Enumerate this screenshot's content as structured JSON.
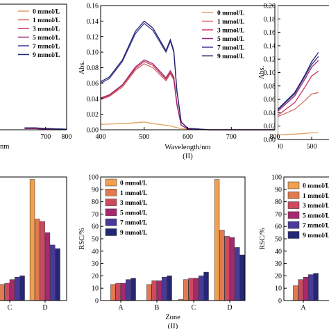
{
  "chart_data": [
    {
      "panel": "top-left (cropped)",
      "type": "line",
      "x_tick_labels": [
        "700",
        "800"
      ],
      "xlabel_fragment": "nm",
      "legend": [
        "0 mmol/L",
        "1 mmol/L",
        "3 mmol/L",
        "5 mmol/L",
        "7 mmol/L",
        "9 mmol/L"
      ],
      "legend_position": "top-right",
      "xlim": [
        450,
        800
      ],
      "ylim": [
        0,
        0.2
      ],
      "series": [
        {
          "name": "0 mmol/L",
          "color": "#e0a060",
          "x": [
            600,
            650,
            700,
            800
          ],
          "y": [
            0.003,
            0.003,
            0.002,
            0.001
          ]
        },
        {
          "name": "1 mmol/L",
          "color": "#d07060",
          "x": [
            600,
            650,
            700,
            800
          ],
          "y": [
            0.002,
            0.002,
            0.001,
            0.001
          ]
        },
        {
          "name": "3 mmol/L",
          "color": "#c83468",
          "x": [
            600,
            650,
            700,
            800
          ],
          "y": [
            0.002,
            0.002,
            0.001,
            0.001
          ]
        },
        {
          "name": "5 mmol/L",
          "color": "#a02870",
          "x": [
            600,
            650,
            700,
            800
          ],
          "y": [
            0.002,
            0.002,
            0.001,
            0.001
          ]
        },
        {
          "name": "7 mmol/L",
          "color": "#3a3a96",
          "x": [
            600,
            650,
            700,
            800
          ],
          "y": [
            0.003,
            0.003,
            0.002,
            0.001
          ]
        },
        {
          "name": "9 mmol/L",
          "color": "#22226e",
          "x": [
            600,
            650,
            700,
            800
          ],
          "y": [
            0.003,
            0.003,
            0.002,
            0.001
          ]
        }
      ]
    },
    {
      "panel": "top-middle",
      "type": "line",
      "xlabel": "Wavelength/nm",
      "ylabel": "Abs.",
      "roman": "(II)",
      "xlim": [
        400,
        800
      ],
      "ylim": [
        0,
        0.16
      ],
      "x_ticks": [
        400,
        500,
        600,
        700,
        800
      ],
      "y_ticks": [
        0.0,
        0.02,
        0.04,
        0.06,
        0.08,
        0.1,
        0.12,
        0.14,
        0.16
      ],
      "y_tick_labels": [
        "0.00",
        "0.02",
        "0.04",
        "0.06",
        "0.08",
        "0.10",
        "0.12",
        "0.14",
        "0.16"
      ],
      "legend": [
        "0 mmol/L",
        "1 mmol/L",
        "3 mmol/L",
        "5 mmol/L",
        "7 mmol/L",
        "9 mmol/L"
      ],
      "legend_position": "top-right",
      "series": [
        {
          "name": "0 mmol/L",
          "color": "#e0a060",
          "x": [
            400,
            450,
            480,
            500,
            520,
            560,
            580,
            600,
            650,
            800
          ],
          "y": [
            0.007,
            0.008,
            0.009,
            0.01,
            0.008,
            0.005,
            0.002,
            0.001,
            0.0,
            0.0
          ]
        },
        {
          "name": "1 mmol/L",
          "color": "#d07060",
          "x": [
            400,
            420,
            450,
            480,
            500,
            520,
            550,
            560,
            568,
            575,
            585,
            600,
            650,
            800
          ],
          "y": [
            0.039,
            0.043,
            0.055,
            0.077,
            0.085,
            0.08,
            0.063,
            0.072,
            0.064,
            0.032,
            0.006,
            0.001,
            0.0,
            0.0
          ]
        },
        {
          "name": "3 mmol/L",
          "color": "#c83468",
          "x": [
            400,
            420,
            450,
            480,
            500,
            520,
            550,
            560,
            568,
            575,
            585,
            600,
            650,
            800
          ],
          "y": [
            0.04,
            0.044,
            0.057,
            0.079,
            0.088,
            0.083,
            0.065,
            0.074,
            0.066,
            0.033,
            0.006,
            0.001,
            0.0,
            0.0
          ]
        },
        {
          "name": "5 mmol/L",
          "color": "#a02870",
          "x": [
            400,
            420,
            450,
            480,
            500,
            520,
            550,
            560,
            568,
            575,
            585,
            600,
            650,
            800
          ],
          "y": [
            0.041,
            0.045,
            0.058,
            0.081,
            0.09,
            0.085,
            0.067,
            0.076,
            0.068,
            0.034,
            0.006,
            0.001,
            0.0,
            0.0
          ]
        },
        {
          "name": "7 mmol/L",
          "color": "#3a3a96",
          "x": [
            400,
            420,
            450,
            480,
            500,
            520,
            550,
            560,
            568,
            575,
            585,
            600,
            650,
            800
          ],
          "y": [
            0.06,
            0.066,
            0.088,
            0.124,
            0.137,
            0.128,
            0.1,
            0.114,
            0.1,
            0.05,
            0.01,
            0.002,
            0.0,
            0.0
          ]
        },
        {
          "name": "9 mmol/L",
          "color": "#22226e",
          "x": [
            400,
            420,
            450,
            480,
            500,
            520,
            550,
            560,
            568,
            575,
            585,
            600,
            650,
            800
          ],
          "y": [
            0.062,
            0.068,
            0.09,
            0.127,
            0.14,
            0.131,
            0.102,
            0.116,
            0.102,
            0.051,
            0.01,
            0.002,
            0.0,
            0.0
          ]
        }
      ]
    },
    {
      "panel": "top-right (cropped)",
      "type": "line",
      "ylabel": "Abs.",
      "xlim": [
        400,
        800
      ],
      "ylim": [
        0,
        0.2
      ],
      "x_tick_labels": [
        "400",
        "500"
      ],
      "y_ticks": [
        0.0,
        0.02,
        0.04,
        0.06,
        0.08,
        0.1,
        0.12,
        0.14,
        0.16,
        0.18,
        0.2
      ],
      "y_tick_labels": [
        "0.00",
        "0.02",
        "0.04",
        "0.06",
        "0.08",
        "0.10",
        "0.12",
        "0.14",
        "0.16",
        "0.18",
        "0.20"
      ],
      "series": [
        {
          "name": "0 mmol/L",
          "color": "#e0a060",
          "x": [
            400,
            450,
            480,
            500,
            520
          ],
          "y": [
            0.007,
            0.008,
            0.009,
            0.01,
            0.01
          ]
        },
        {
          "name": "1 mmol/L",
          "color": "#d07060",
          "x": [
            400,
            450,
            480,
            500,
            520
          ],
          "y": [
            0.034,
            0.045,
            0.058,
            0.068,
            0.07
          ]
        },
        {
          "name": "3 mmol/L",
          "color": "#c83468",
          "x": [
            400,
            450,
            480,
            500,
            520
          ],
          "y": [
            0.036,
            0.055,
            0.078,
            0.095,
            0.102
          ]
        },
        {
          "name": "5 mmol/L",
          "color": "#a02870",
          "x": [
            400,
            450,
            480,
            500,
            520
          ],
          "y": [
            0.042,
            0.065,
            0.09,
            0.108,
            0.118
          ]
        },
        {
          "name": "7 mmol/L",
          "color": "#3a3a96",
          "x": [
            400,
            450,
            480,
            500,
            520
          ],
          "y": [
            0.044,
            0.068,
            0.094,
            0.112,
            0.124
          ]
        },
        {
          "name": "9 mmol/L",
          "color": "#22226e",
          "x": [
            400,
            450,
            480,
            500,
            520
          ],
          "y": [
            0.045,
            0.07,
            0.096,
            0.116,
            0.13
          ]
        }
      ]
    },
    {
      "panel": "bottom-left (cropped)",
      "type": "bar",
      "categories": [
        "C",
        "D"
      ],
      "ylim": [
        0,
        100
      ],
      "series": [
        {
          "name": "0 mmol/L",
          "color": "#f0a050",
          "values": [
            null,
            98
          ]
        },
        {
          "name": "1 mmol/L",
          "color": "#e07a50",
          "values": [
            13,
            66
          ]
        },
        {
          "name": "3 mmol/L",
          "color": "#cc4a5e",
          "values": [
            14,
            64
          ]
        },
        {
          "name": "5 mmol/L",
          "color": "#a8286e",
          "values": [
            17,
            55
          ]
        },
        {
          "name": "7 mmol/L",
          "color": "#4a3a98",
          "values": [
            19,
            45
          ]
        },
        {
          "name": "9 mmol/L",
          "color": "#262676",
          "values": [
            20,
            42
          ]
        }
      ]
    },
    {
      "panel": "bottom-middle",
      "type": "bar",
      "xlabel": "Zone",
      "ylabel": "RSC/%",
      "roman": "(II)",
      "categories": [
        "A",
        "B",
        "C",
        "D"
      ],
      "ylim": [
        0,
        100
      ],
      "y_ticks": [
        0,
        10,
        20,
        30,
        40,
        50,
        60,
        70,
        80,
        90,
        100
      ],
      "legend": [
        "0 mmol/L",
        "1 mmol/L",
        "3 mmol/L",
        "5 mmol/L",
        "7 mmol/L",
        "9 mmol/L"
      ],
      "legend_position": "top-left",
      "series": [
        {
          "name": "0 mmol/L",
          "color": "#f0a050",
          "values": [
            0,
            0,
            1,
            98
          ]
        },
        {
          "name": "1 mmol/L",
          "color": "#e07a50",
          "values": [
            13,
            13,
            17,
            57
          ]
        },
        {
          "name": "3 mmol/L",
          "color": "#cc4a5e",
          "values": [
            14,
            16,
            18,
            52
          ]
        },
        {
          "name": "5 mmol/L",
          "color": "#a8286e",
          "values": [
            14,
            16,
            18,
            51
          ]
        },
        {
          "name": "7 mmol/L",
          "color": "#4a3a98",
          "values": [
            17,
            19,
            20,
            43
          ]
        },
        {
          "name": "9 mmol/L",
          "color": "#262676",
          "values": [
            18,
            20,
            23,
            37
          ]
        }
      ]
    },
    {
      "panel": "bottom-right (cropped)",
      "type": "bar",
      "ylabel": "RSC/%",
      "categories": [
        "A"
      ],
      "ylim": [
        0,
        100
      ],
      "y_ticks": [
        0,
        10,
        20,
        30,
        40,
        50,
        60,
        70,
        80,
        90,
        100
      ],
      "legend": [
        "0 mmol/L",
        "1 mmol/L",
        "3 mmol/L",
        "5 mmol/L",
        "7 mmol/L",
        "9 mmol/L"
      ],
      "legend_position": "top-left",
      "series": [
        {
          "name": "0 mmol/L",
          "color": "#f0a050",
          "values": [
            0
          ]
        },
        {
          "name": "1 mmol/L",
          "color": "#e07a50",
          "values": [
            12
          ]
        },
        {
          "name": "3 mmol/L",
          "color": "#cc4a5e",
          "values": [
            17
          ]
        },
        {
          "name": "5 mmol/L",
          "color": "#a8286e",
          "values": [
            19
          ]
        },
        {
          "name": "7 mmol/L",
          "color": "#4a3a98",
          "values": [
            21
          ]
        },
        {
          "name": "9 mmol/L",
          "color": "#262676",
          "values": [
            22
          ]
        }
      ]
    }
  ]
}
